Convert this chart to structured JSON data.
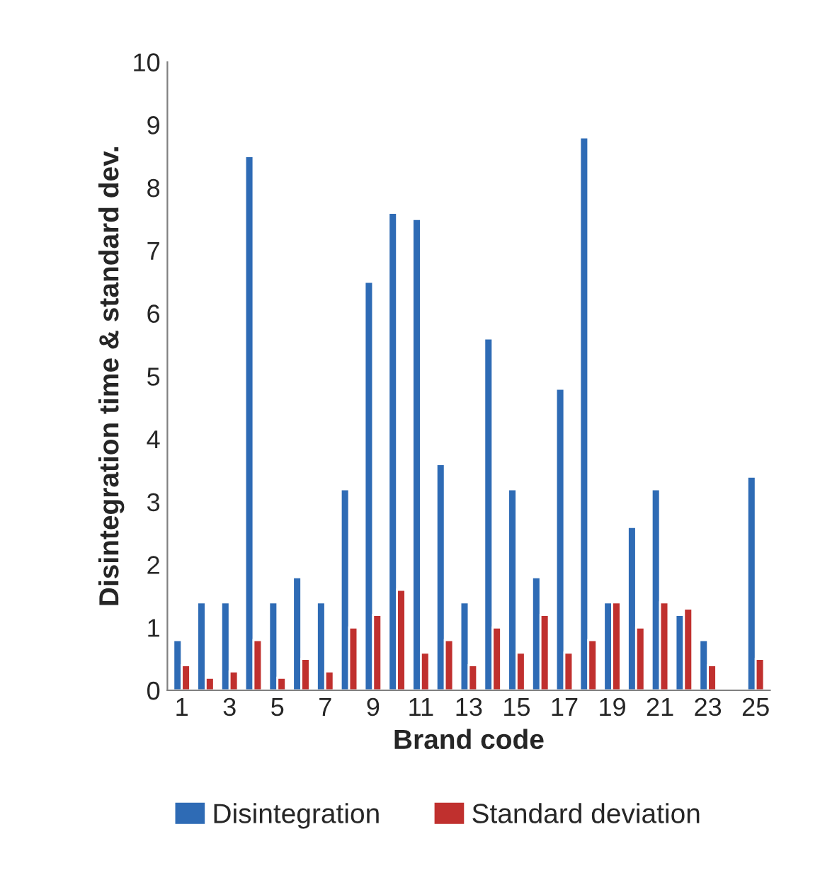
{
  "chart_data": {
    "type": "bar",
    "xlabel": "Brand code",
    "ylabel": "Disintegration time & standard dev.",
    "categories": [
      "1",
      null,
      "3",
      null,
      "5",
      null,
      "7",
      null,
      "9",
      null,
      "11",
      null,
      "13",
      null,
      "15",
      null,
      "17",
      null,
      "19",
      null,
      "21",
      null,
      "23",
      null,
      "25"
    ],
    "series": [
      {
        "name": "Disintegration",
        "color": "#2e6bb5",
        "values": [
          0.8,
          1.4,
          1.4,
          8.5,
          1.4,
          1.8,
          1.4,
          3.2,
          6.5,
          7.6,
          7.5,
          3.6,
          1.4,
          5.6,
          3.2,
          1.8,
          4.8,
          8.8,
          1.4,
          2.6,
          3.2,
          1.2,
          0.8,
          null,
          3.4
        ]
      },
      {
        "name": "Standard deviation",
        "color": "#c0302e",
        "values": [
          0.4,
          0.2,
          0.3,
          0.8,
          0.2,
          0.5,
          0.3,
          1.0,
          1.2,
          1.6,
          0.6,
          0.8,
          0.4,
          1.0,
          0.6,
          1.2,
          0.6,
          0.8,
          1.4,
          1.0,
          1.4,
          1.3,
          0.4,
          null,
          0.5
        ]
      }
    ],
    "ylim": [
      0,
      10
    ],
    "yticks": [
      0,
      1,
      2,
      3,
      4,
      5,
      6,
      7,
      8,
      9,
      10
    ],
    "grid": false,
    "legend": "bottom"
  }
}
